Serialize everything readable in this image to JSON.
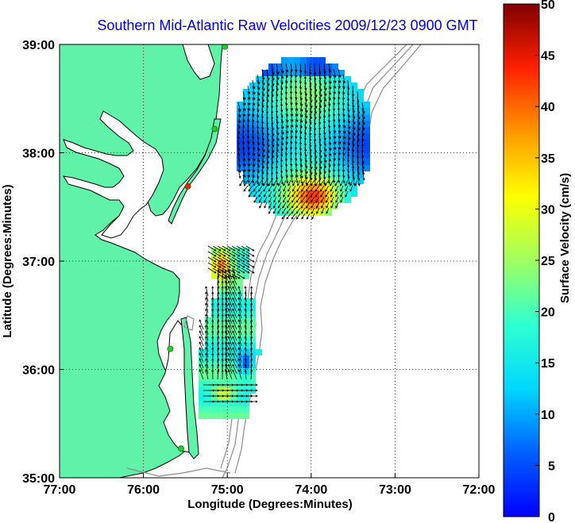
{
  "title": "Southern Mid-Atlantic Raw Velocities 2009/12/23 0900 GMT",
  "xlabel": "Longitude (Degrees:Minutes)",
  "ylabel": "Latitude (Degrees:Minutes)",
  "colorbar_label": "Surface Velocity (cm/s)",
  "x_ticks": [
    "77:00",
    "76:00",
    "75:00",
    "74:00",
    "73:00",
    "72:00"
  ],
  "y_ticks": [
    "39:00",
    "38:00",
    "37:00",
    "36:00",
    "35:00"
  ],
  "colorbar_ticks": [
    "50",
    "45",
    "40",
    "35",
    "30",
    "25",
    "20",
    "15",
    "10",
    "5",
    "0"
  ],
  "colors": {
    "land": "#5ff2a8",
    "water": "#ffffff",
    "coastline": "#000000",
    "bathymetry": "#8c8c8c",
    "title": "#0000ee",
    "station": "#22cc22",
    "station_alert": "#ee2200"
  },
  "chart_data": {
    "type": "map",
    "lon_range": [
      -77,
      -72
    ],
    "lat_range": [
      35,
      39
    ],
    "colorbar_range": [
      0,
      50
    ],
    "grid": true,
    "stations": [
      {
        "lon": -75.03,
        "lat": 38.98,
        "status": "ok"
      },
      {
        "lon": -75.15,
        "lat": 38.22,
        "status": "ok"
      },
      {
        "lon": -75.47,
        "lat": 37.69,
        "status": "alert"
      },
      {
        "lon": -75.68,
        "lat": 36.19,
        "status": "ok"
      },
      {
        "lon": -75.55,
        "lat": 35.27,
        "status": "ok"
      }
    ]
  }
}
